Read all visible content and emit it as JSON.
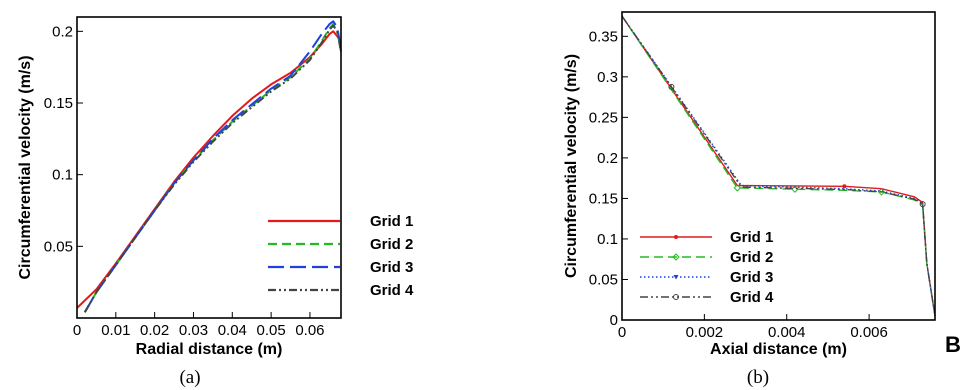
{
  "colors": {
    "grid1": "#e31a1c",
    "grid2": "#22bb22",
    "grid3": "#2040dd",
    "grid4": "#444444"
  },
  "chart_data": [
    {
      "type": "line",
      "caption": "(a)",
      "xlabel": "Radial distance (m)",
      "ylabel": "Circumferential velocity (m/s)",
      "xlim": [
        0,
        0.068
      ],
      "ylim": [
        0,
        0.21
      ],
      "xticks": [
        0,
        0.01,
        0.02,
        0.03,
        0.04,
        0.05,
        0.06
      ],
      "yticks": [
        0.05,
        0.1,
        0.15,
        0.2
      ],
      "xtick_labels": [
        "0",
        "0.01",
        "0.02",
        "0.03",
        "0.04",
        "0.05",
        "0.06"
      ],
      "ytick_labels": [
        "0.05",
        "0.1",
        "0.15",
        "0.2"
      ],
      "legend_position": "lower-right",
      "series": [
        {
          "name": "Grid 1",
          "dash": "solid",
          "marker": "none",
          "x": [
            0,
            0.005,
            0.01,
            0.015,
            0.02,
            0.025,
            0.03,
            0.035,
            0.04,
            0.045,
            0.05,
            0.055,
            0.06,
            0.063,
            0.065,
            0.066,
            0.0675,
            0.068
          ],
          "y": [
            0.007,
            0.02,
            0.038,
            0.057,
            0.076,
            0.095,
            0.112,
            0.127,
            0.141,
            0.153,
            0.163,
            0.171,
            0.182,
            0.191,
            0.198,
            0.2,
            0.195,
            0.186
          ]
        },
        {
          "name": "Grid 2",
          "dash": "dashed",
          "marker": "none",
          "x": [
            0.002,
            0.005,
            0.01,
            0.015,
            0.02,
            0.025,
            0.03,
            0.035,
            0.04,
            0.045,
            0.05,
            0.055,
            0.06,
            0.063,
            0.065,
            0.066,
            0.067,
            0.068
          ],
          "y": [
            0.004,
            0.018,
            0.037,
            0.056,
            0.075,
            0.094,
            0.11,
            0.124,
            0.137,
            0.148,
            0.159,
            0.168,
            0.181,
            0.193,
            0.202,
            0.205,
            0.2,
            0.186
          ]
        },
        {
          "name": "Grid 3",
          "dash": "longdash",
          "marker": "none",
          "x": [
            0.002,
            0.005,
            0.01,
            0.015,
            0.02,
            0.025,
            0.03,
            0.035,
            0.04,
            0.045,
            0.05,
            0.055,
            0.06,
            0.063,
            0.065,
            0.066,
            0.067,
            0.068
          ],
          "y": [
            0.004,
            0.018,
            0.037,
            0.056,
            0.075,
            0.094,
            0.11,
            0.125,
            0.138,
            0.149,
            0.16,
            0.169,
            0.186,
            0.198,
            0.205,
            0.207,
            0.203,
            0.188
          ]
        },
        {
          "name": "Grid 4",
          "dash": "dashdotdot",
          "marker": "none",
          "x": [
            0.002,
            0.005,
            0.01,
            0.015,
            0.02,
            0.025,
            0.03,
            0.035,
            0.04,
            0.045,
            0.05,
            0.055,
            0.06,
            0.063,
            0.065,
            0.066,
            0.067,
            0.068
          ],
          "y": [
            0.004,
            0.018,
            0.037,
            0.056,
            0.075,
            0.093,
            0.109,
            0.123,
            0.136,
            0.147,
            0.158,
            0.167,
            0.18,
            0.192,
            0.201,
            0.204,
            0.2,
            0.186
          ]
        }
      ]
    },
    {
      "type": "line",
      "caption": "(b)",
      "corner_label": "B",
      "xlabel": "Axial distance (m)",
      "ylabel": "Circumferential velocity (m/s)",
      "xlim": [
        0,
        0.0076
      ],
      "ylim": [
        0,
        0.38
      ],
      "xticks": [
        0,
        0.002,
        0.004,
        0.006
      ],
      "yticks": [
        0,
        0.05,
        0.1,
        0.15,
        0.2,
        0.25,
        0.3,
        0.35
      ],
      "xtick_labels": [
        "0",
        "0.002",
        "0.004",
        "0.006"
      ],
      "ytick_labels": [
        "0",
        "0.05",
        "0.1",
        "0.15",
        "0.2",
        "0.25",
        "0.3",
        "0.35"
      ],
      "legend_position": "lower-left",
      "series": [
        {
          "name": "Grid 1",
          "dash": "solid",
          "marker": "dot",
          "x": [
            0,
            0.0028,
            0.0054,
            0.0063,
            0.0071,
            0.0073,
            0.0074,
            0.0076
          ],
          "y": [
            0.375,
            0.166,
            0.165,
            0.162,
            0.152,
            0.145,
            0.07,
            0.005
          ],
          "marker_x": [
            0.0054
          ]
        },
        {
          "name": "Grid 2",
          "dash": "dashed",
          "marker": "diamond",
          "x": [
            0,
            0.0028,
            0.0054,
            0.0063,
            0.0071,
            0.0073,
            0.0074,
            0.0076
          ],
          "y": [
            0.375,
            0.163,
            0.16,
            0.158,
            0.148,
            0.142,
            0.07,
            0.005
          ],
          "marker_x": [
            0.0028,
            0.0042,
            0.0063
          ]
        },
        {
          "name": "Grid 3",
          "dash": "dotted",
          "marker": "triangle",
          "x": [
            0,
            0.0029,
            0.0054,
            0.0063,
            0.0071,
            0.0073,
            0.0074,
            0.0076
          ],
          "y": [
            0.375,
            0.166,
            0.162,
            0.159,
            0.15,
            0.144,
            0.07,
            0.005
          ],
          "marker_x": []
        },
        {
          "name": "Grid 4",
          "dash": "dashdotdot",
          "marker": "circle",
          "x": [
            0,
            0.0029,
            0.0054,
            0.0063,
            0.0071,
            0.0073,
            0.0074,
            0.0076
          ],
          "y": [
            0.375,
            0.164,
            0.161,
            0.158,
            0.149,
            0.143,
            0.07,
            0.005
          ],
          "marker_x": [
            0.0012,
            0.0073
          ]
        }
      ]
    }
  ]
}
